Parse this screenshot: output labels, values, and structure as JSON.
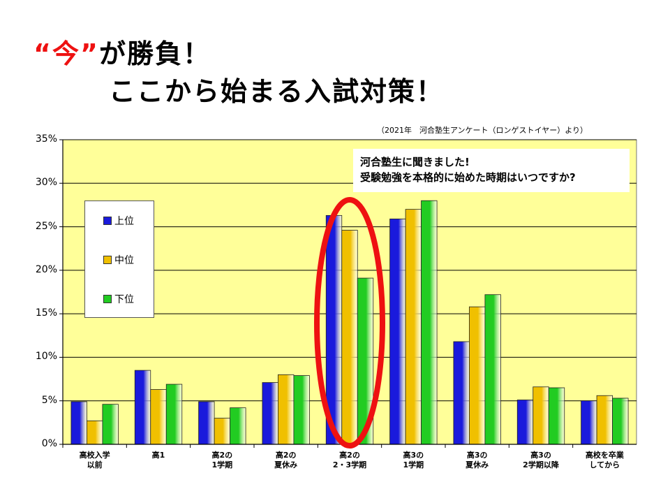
{
  "headline": {
    "ima": "“今”",
    "line1_rest": "が勝負！",
    "line2": "ここから始まる入試対策！"
  },
  "source_note": "（2021年　河合塾生アンケート（ロンゲストイヤー）より）",
  "callout": {
    "line1": "河合塾生に聞きました!",
    "line2": "受験勉強を本格的に始めた時期はいつですか?"
  },
  "colors": {
    "plot_bg": "#ffff99",
    "highlight": "#ee1111",
    "series": [
      "#1a1adc",
      "#f0c000",
      "#22cc22"
    ]
  },
  "chart_data": {
    "type": "bar",
    "categories": [
      [
        "高校入学",
        "以前"
      ],
      [
        "高1",
        ""
      ],
      [
        "高2の",
        "1学期"
      ],
      [
        "高2の",
        "夏休み"
      ],
      [
        "高2の",
        "2・3学期"
      ],
      [
        "高3の",
        "1学期"
      ],
      [
        "高3の",
        "夏休み"
      ],
      [
        "高3の",
        "2学期以降"
      ],
      [
        "高校を卒業",
        "してから"
      ]
    ],
    "series": [
      {
        "name": "上位",
        "values": [
          4.9,
          8.5,
          4.9,
          7.1,
          26.3,
          25.9,
          11.8,
          5.1,
          5.0
        ]
      },
      {
        "name": "中位",
        "values": [
          2.7,
          6.3,
          3.0,
          8.0,
          24.6,
          27.0,
          15.8,
          6.6,
          5.6
        ]
      },
      {
        "name": "下位",
        "values": [
          4.6,
          6.9,
          4.2,
          7.9,
          19.1,
          28.0,
          17.2,
          6.5,
          5.3
        ]
      }
    ],
    "yticks": [
      "0%",
      "5%",
      "10%",
      "15%",
      "20%",
      "25%",
      "30%",
      "35%"
    ],
    "ylim": [
      0,
      35
    ],
    "highlight_category_index": 4,
    "grid": true,
    "legend_position": "left"
  }
}
